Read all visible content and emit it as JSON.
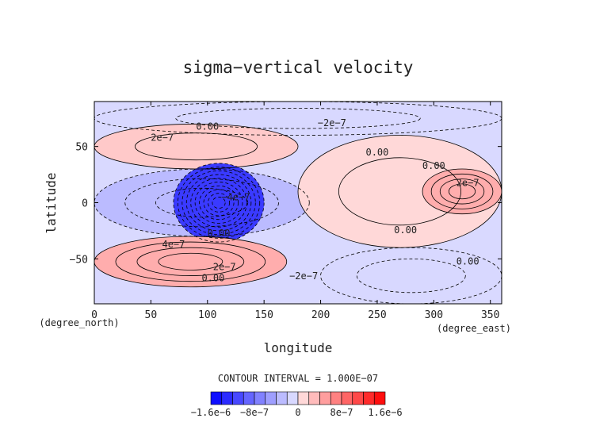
{
  "chart_data": {
    "type": "contour",
    "title": "sigma−vertical velocity",
    "xlabel": "longitude",
    "ylabel": "latitude",
    "x_unit": "(degree_east)",
    "y_unit": "(degree_north)",
    "xlim": [
      0,
      360
    ],
    "ylim": [
      -90,
      90
    ],
    "xticks": [
      0,
      50,
      100,
      150,
      200,
      250,
      300,
      350
    ],
    "yticks": [
      -50,
      0,
      50
    ],
    "contour_interval_text": "CONTOUR INTERVAL = 1.000E−07",
    "contour_labels": [
      {
        "text": "2e−7",
        "lon": 60,
        "lat": 55
      },
      {
        "text": "0.00",
        "lon": 100,
        "lat": 65
      },
      {
        "text": "−2e−7",
        "lon": 210,
        "lat": 68
      },
      {
        "text": "0.00",
        "lon": 250,
        "lat": 42
      },
      {
        "text": "0.00",
        "lon": 300,
        "lat": 30
      },
      {
        "text": "2e−7",
        "lon": 330,
        "lat": 15
      },
      {
        "text": "4e−7",
        "lon": 70,
        "lat": -40
      },
      {
        "text": "0.00",
        "lon": 110,
        "lat": -30
      },
      {
        "text": "0.00",
        "lon": 275,
        "lat": -27
      },
      {
        "text": "0.00",
        "lon": 330,
        "lat": -55
      },
      {
        "text": "2e−7",
        "lon": 115,
        "lat": -60
      },
      {
        "text": "−2e−7",
        "lon": 185,
        "lat": -68
      },
      {
        "text": "0.00",
        "lon": 105,
        "lat": -70
      },
      {
        "text": "−4e−7",
        "lon": 125,
        "lat": 2
      }
    ],
    "colorbar": {
      "min": -1.6e-06,
      "max": 1.6e-06,
      "tick_labels": [
        "−1.6e−6",
        "−8e−7",
        "0",
        "8e−7",
        "1.6e−6"
      ],
      "negative_color": "#0000ff",
      "positive_color": "#ff0000",
      "neutral_negative": "#d8d8ff",
      "neutral_positive": "#ffd8d8"
    },
    "regions": [
      {
        "sign": "negative",
        "lon": [
          0,
          360
        ],
        "lat": [
          60,
          90
        ],
        "value": -1e-07
      },
      {
        "sign": "positive",
        "lon": [
          0,
          180
        ],
        "lat": [
          30,
          70
        ],
        "value": 2e-07
      },
      {
        "sign": "negative",
        "lon": [
          0,
          190
        ],
        "lat": [
          -30,
          30
        ],
        "value": -3e-07
      },
      {
        "sign": "negative",
        "lon": [
          70,
          150
        ],
        "lat": [
          -35,
          35
        ],
        "value": -1.2e-06
      },
      {
        "sign": "positive",
        "lon": [
          180,
          360
        ],
        "lat": [
          -40,
          60
        ],
        "value": 1e-07
      },
      {
        "sign": "positive",
        "lon": [
          290,
          360
        ],
        "lat": [
          -10,
          30
        ],
        "value": 4e-07
      },
      {
        "sign": "positive",
        "lon": [
          0,
          170
        ],
        "lat": [
          -75,
          -30
        ],
        "value": 4e-07
      },
      {
        "sign": "negative",
        "lon": [
          200,
          360
        ],
        "lat": [
          -90,
          -40
        ],
        "value": -1e-07
      }
    ]
  }
}
